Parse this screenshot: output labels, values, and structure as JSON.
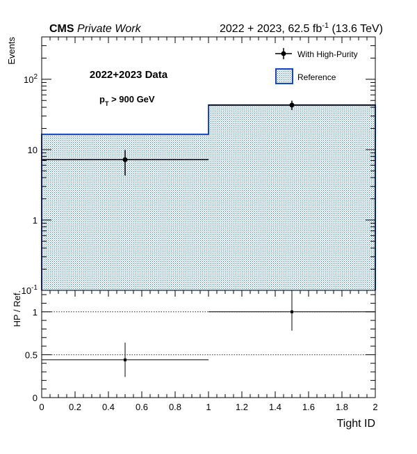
{
  "header": {
    "experiment": "CMS",
    "status": "Private Work",
    "lumi_prefix": "2022 + 2023, 62.5 fb",
    "lumi_exp": "-1",
    "lumi_suffix": " (13.6 TeV)"
  },
  "annotations": {
    "dataset": "2022+2023 Data",
    "cut_p": "p",
    "cut_sub": "T",
    "cut_rest": " > 900 GeV"
  },
  "legend": {
    "data_label": "With High-Purity",
    "reference_label": "Reference",
    "placement": "top-right"
  },
  "colors": {
    "reference_line": "#1446c8",
    "reference_fill": "#7fb0c8",
    "data": "#000000"
  },
  "chart_data": [
    {
      "type": "bar",
      "panel": "main",
      "ylabel": "Events",
      "yscale": "log",
      "ylim": [
        0.1,
        400
      ],
      "xlim": [
        0,
        2
      ],
      "y_ticks": [
        {
          "value": 0.1,
          "base": "10",
          "exp": "-1"
        },
        {
          "value": 1,
          "base": "1",
          "exp": ""
        },
        {
          "value": 10,
          "base": "10",
          "exp": ""
        },
        {
          "value": 100,
          "base": "10",
          "exp": "2"
        }
      ],
      "series": [
        {
          "name": "Reference",
          "kind": "histogram",
          "bin_edges": [
            0,
            1,
            2
          ],
          "values": [
            16.5,
            43
          ]
        },
        {
          "name": "With High-Purity",
          "kind": "points",
          "x": [
            0.5,
            1.5
          ],
          "x_err": [
            0.5,
            0.5
          ],
          "y": [
            7.2,
            43
          ],
          "y_err_low": [
            2.9,
            6.5
          ],
          "y_err_high": [
            2.7,
            6.6
          ]
        }
      ]
    },
    {
      "type": "scatter",
      "panel": "ratio",
      "xlabel": "Tight ID",
      "ylabel": "HP / Ref.",
      "xlim": [
        0,
        2
      ],
      "ylim": [
        0,
        1.25
      ],
      "x_ticks": [
        "0",
        "0.2",
        "0.4",
        "0.6",
        "0.8",
        "1",
        "1.2",
        "1.4",
        "1.6",
        "1.8",
        "2"
      ],
      "y_ticks": [
        "0",
        "0.5",
        "1"
      ],
      "reference_lines": [
        0.5,
        1
      ],
      "series": [
        {
          "name": "HP / Ref.",
          "x": [
            0.5,
            1.5
          ],
          "x_err": [
            0.5,
            0.5
          ],
          "y": [
            0.44,
            1.0
          ],
          "y_err_low": [
            0.2,
            0.22
          ],
          "y_err_high": [
            0.2,
            0.22
          ]
        }
      ]
    }
  ]
}
